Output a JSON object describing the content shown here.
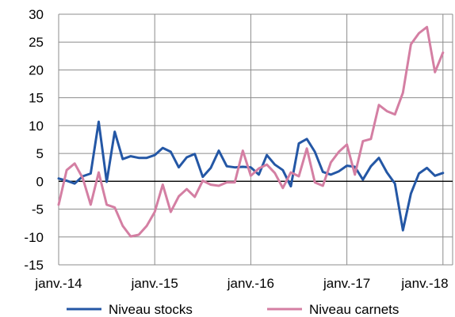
{
  "chart_data": {
    "type": "line",
    "title": "",
    "xlabel": "",
    "ylabel": "",
    "ylim": [
      -15,
      30
    ],
    "yticks": [
      -15,
      -10,
      -5,
      0,
      5,
      10,
      15,
      20,
      25,
      30
    ],
    "x_tick_labels": [
      "janv.-14",
      "janv.-15",
      "janv.-16",
      "janv.-17",
      "janv.-18"
    ],
    "x_period": "monthly, janv.-14 to mars-18",
    "grid": true,
    "legend_position": "bottom",
    "colors": {
      "stocks": "#2457a5",
      "carnets": "#d47fa3"
    },
    "series": [
      {
        "name": "Niveau stocks",
        "color": "#2457a5",
        "values": [
          0.5,
          0.1,
          -0.4,
          0.9,
          1.4,
          10.7,
          -0.1,
          8.9,
          4.0,
          4.5,
          4.2,
          4.2,
          4.7,
          6.0,
          5.3,
          2.5,
          4.3,
          4.9,
          0.8,
          2.4,
          5.5,
          2.7,
          2.5,
          2.6,
          2.5,
          1.2,
          4.7,
          3.0,
          2.0,
          -0.9,
          6.8,
          7.6,
          5.3,
          1.7,
          1.2,
          1.8,
          2.8,
          2.6,
          0.3,
          2.7,
          4.2,
          1.6,
          -0.4,
          -8.8,
          -2.2,
          1.4,
          2.4,
          1.0,
          1.5
        ]
      },
      {
        "name": "Niveau carnets",
        "color": "#d47fa3",
        "values": [
          -4.2,
          2.0,
          3.2,
          0.6,
          -4.2,
          1.6,
          -4.2,
          -4.7,
          -8.0,
          -9.9,
          -9.6,
          -8.0,
          -5.5,
          -0.6,
          -5.5,
          -2.7,
          -1.4,
          -2.8,
          0.1,
          -0.6,
          -0.8,
          -0.2,
          -0.2,
          5.5,
          1.0,
          2.3,
          3.0,
          1.5,
          -1.2,
          1.6,
          0.9,
          5.9,
          -0.2,
          -0.8,
          3.4,
          5.3,
          6.6,
          1.2,
          7.2,
          7.6,
          13.7,
          12.6,
          12.0,
          15.9,
          24.6,
          26.6,
          27.7,
          19.6,
          23.1
        ]
      }
    ]
  }
}
